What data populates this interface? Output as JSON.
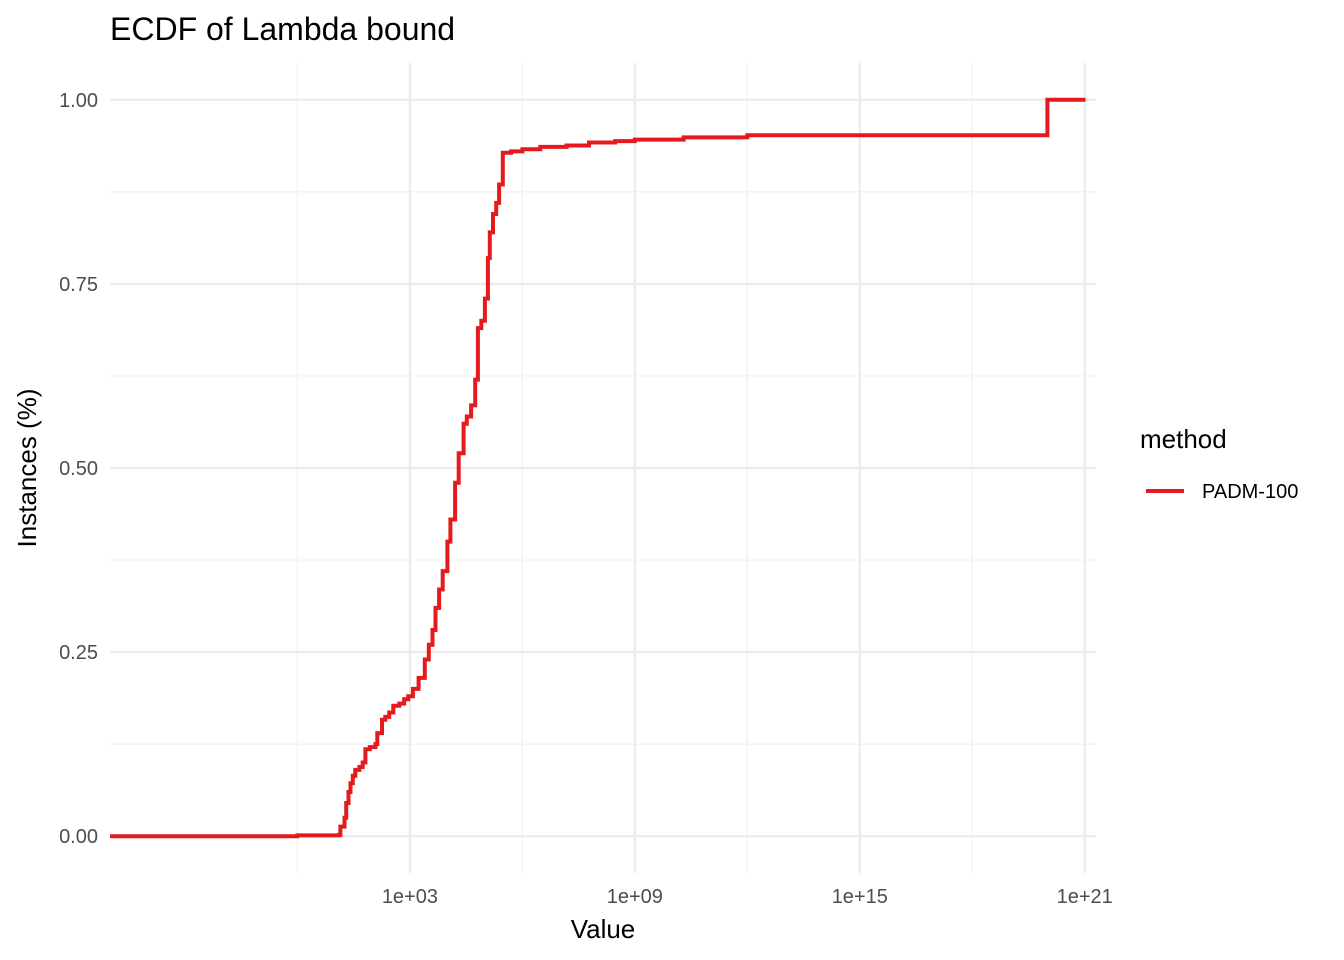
{
  "chart_data": {
    "type": "line",
    "title": "ECDF of Lambda bound",
    "xlabel": "Value",
    "ylabel": "Instances (%)",
    "x_scale": "log10",
    "xlim": [
      1e-05,
      2e+21
    ],
    "ylim": [
      -0.05,
      1.05
    ],
    "x_ticks": [
      {
        "value": 1000.0,
        "label": "1e+03"
      },
      {
        "value": 1000000000.0,
        "label": "1e+09"
      },
      {
        "value": 1000000000000000.0,
        "label": "1e+15"
      },
      {
        "value": 1e+21,
        "label": "1e+21"
      }
    ],
    "x_minor_ticks": [
      1.0,
      1000000.0,
      1000000000000.0,
      1e+18
    ],
    "y_ticks": [
      {
        "value": 0.0,
        "label": "0.00"
      },
      {
        "value": 0.25,
        "label": "0.25"
      },
      {
        "value": 0.5,
        "label": "0.50"
      },
      {
        "value": 0.75,
        "label": "0.75"
      },
      {
        "value": 1.0,
        "label": "1.00"
      }
    ],
    "y_minor_ticks": [
      0.125,
      0.375,
      0.625,
      0.875
    ],
    "grid": true,
    "legend": {
      "title": "method",
      "position": "right"
    },
    "series": [
      {
        "name": "PADM-100",
        "color": "#e41a1c",
        "step": true,
        "points": [
          [
            1e-05,
            0.0
          ],
          [
            1.0,
            0.001
          ],
          [
            13.0,
            0.002
          ],
          [
            14.0,
            0.013
          ],
          [
            18.0,
            0.025
          ],
          [
            20.0,
            0.045
          ],
          [
            23.0,
            0.06
          ],
          [
            26.0,
            0.072
          ],
          [
            30.0,
            0.082
          ],
          [
            35.0,
            0.09
          ],
          [
            45.0,
            0.094
          ],
          [
            55.0,
            0.1
          ],
          [
            65.0,
            0.118
          ],
          [
            85.0,
            0.121
          ],
          [
            120.0,
            0.125
          ],
          [
            135.0,
            0.14
          ],
          [
            180.0,
            0.158
          ],
          [
            220.0,
            0.162
          ],
          [
            280.0,
            0.168
          ],
          [
            360.0,
            0.177
          ],
          [
            520.0,
            0.18
          ],
          [
            700.0,
            0.186
          ],
          [
            900.0,
            0.19
          ],
          [
            1200.0,
            0.2
          ],
          [
            1700.0,
            0.215
          ],
          [
            2500.0,
            0.24
          ],
          [
            3200.0,
            0.26
          ],
          [
            4000.0,
            0.28
          ],
          [
            4800.0,
            0.31
          ],
          [
            6000.0,
            0.335
          ],
          [
            7500.0,
            0.36
          ],
          [
            10000.0,
            0.4
          ],
          [
            12000.0,
            0.43
          ],
          [
            16000.0,
            0.48
          ],
          [
            20000.0,
            0.52
          ],
          [
            27000.0,
            0.56
          ],
          [
            33000.0,
            0.57
          ],
          [
            43000.0,
            0.585
          ],
          [
            55000.0,
            0.62
          ],
          [
            65000.0,
            0.69
          ],
          [
            80000.0,
            0.7
          ],
          [
            100000.0,
            0.73
          ],
          [
            120000.0,
            0.785
          ],
          [
            135000.0,
            0.82
          ],
          [
            165000.0,
            0.845
          ],
          [
            200000.0,
            0.86
          ],
          [
            240000.0,
            0.885
          ],
          [
            300000.0,
            0.928
          ],
          [
            500000.0,
            0.93
          ],
          [
            1000000.0,
            0.933
          ],
          [
            3000000.0,
            0.936
          ],
          [
            15000000.0,
            0.938
          ],
          [
            60000000.0,
            0.942
          ],
          [
            300000000.0,
            0.944
          ],
          [
            1000000000.0,
            0.946
          ],
          [
            20000000000.0,
            0.949
          ],
          [
            1000000000000.0,
            0.952
          ],
          [
            1e+20,
            0.952
          ],
          [
            1.01e+20,
            1.0
          ],
          [
            1.05e+21,
            1.0
          ]
        ]
      }
    ]
  }
}
